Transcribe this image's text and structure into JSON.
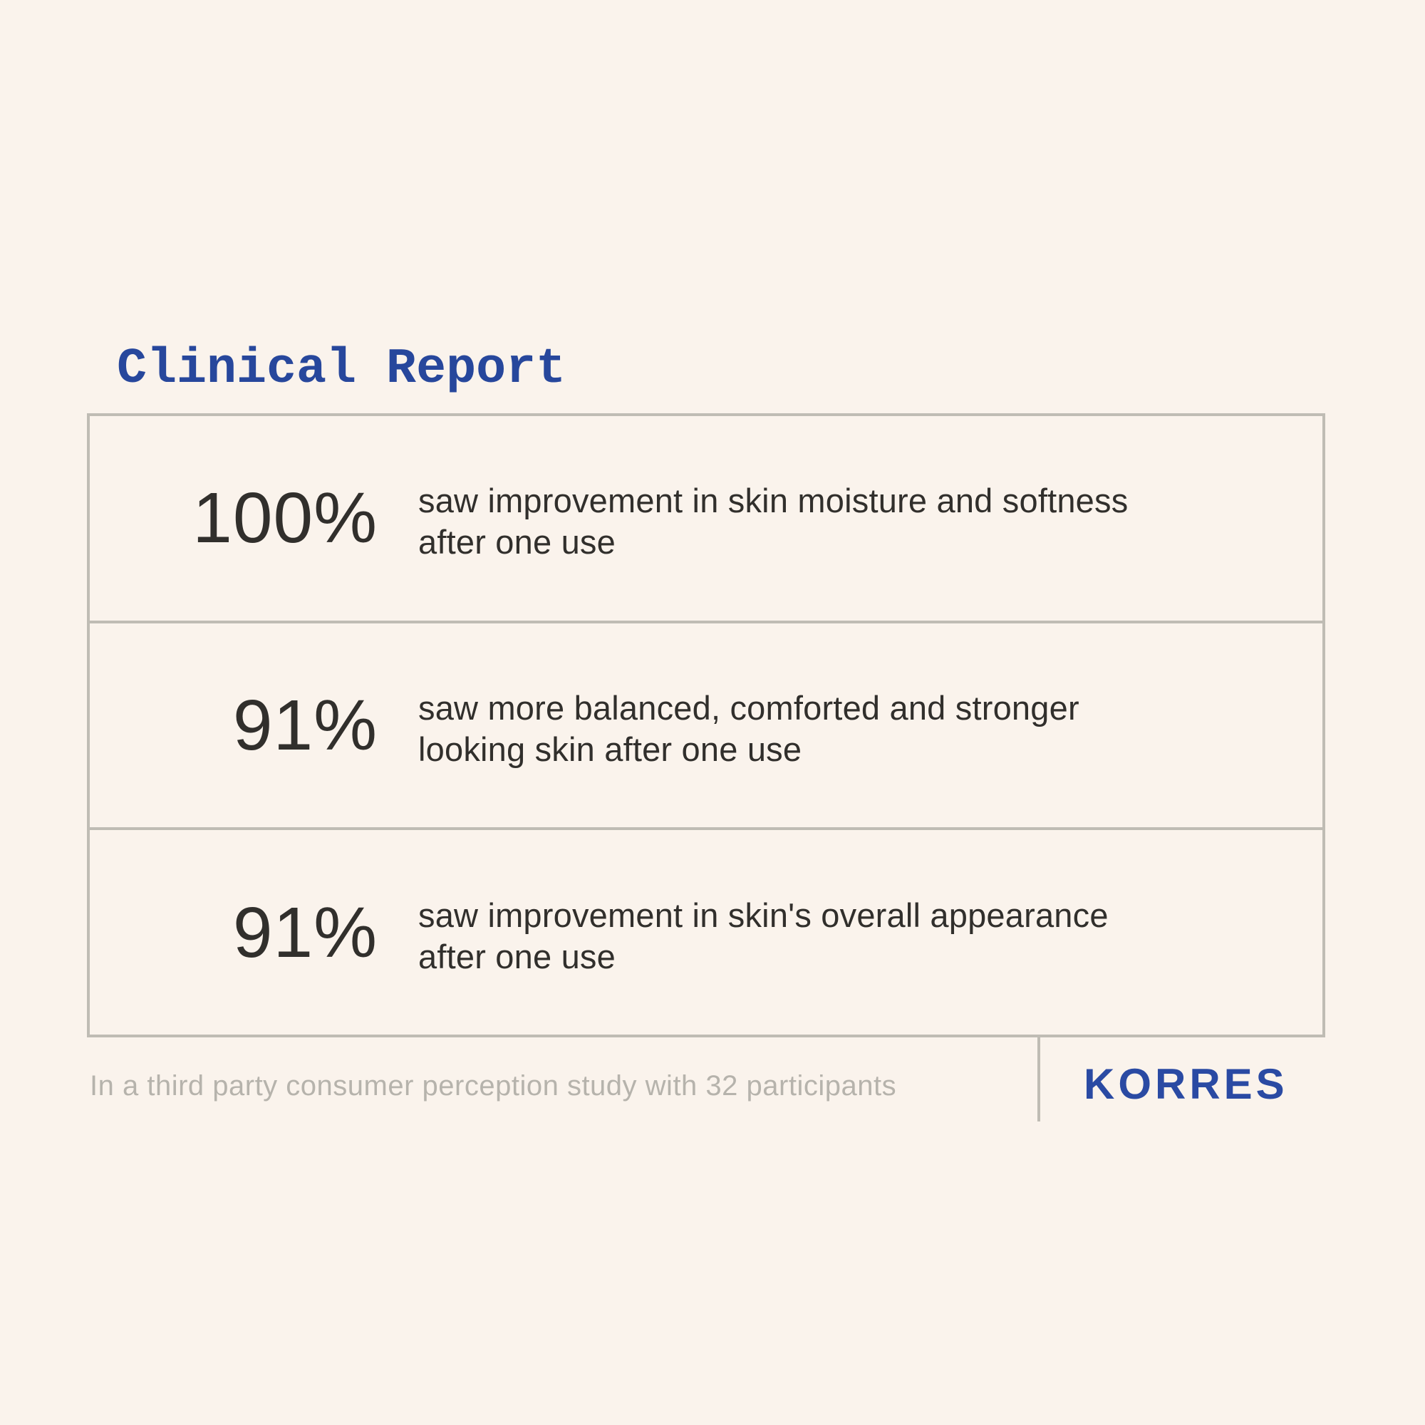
{
  "colors": {
    "background": "#faf3ec",
    "title_blue": "#27479c",
    "brand_blue": "#2a4aa3",
    "text_dark": "#312f2c",
    "muted_gray": "#b6b3ac",
    "border_gray": "#bfbcb4"
  },
  "chart_data": {
    "type": "table",
    "title": "Clinical Report",
    "columns": [
      "percentage",
      "finding"
    ],
    "rows": [
      {
        "value": "100%",
        "finding": "saw improvement in skin moisture and softness after one use",
        "line1": "saw improvement in skin moisture and softness",
        "line2": "after one use"
      },
      {
        "value": "91%",
        "finding": "saw more balanced, comforted and stronger looking skin after one use",
        "line1": "saw more balanced, comforted and stronger",
        "line2": "looking skin after one use"
      },
      {
        "value": "91%",
        "finding": "saw improvement in skin's overall appearance after one use",
        "line1": "saw improvement in skin's overall appearance",
        "line2": "after one use"
      }
    ],
    "footnote": "In a third party consumer perception study with 32 participants",
    "brand": "KORRES",
    "layout": "three-row bordered stat table; percentages right-aligned in left column; descriptions in right column; footnote and brand logo below, separated by vertical rule"
  }
}
